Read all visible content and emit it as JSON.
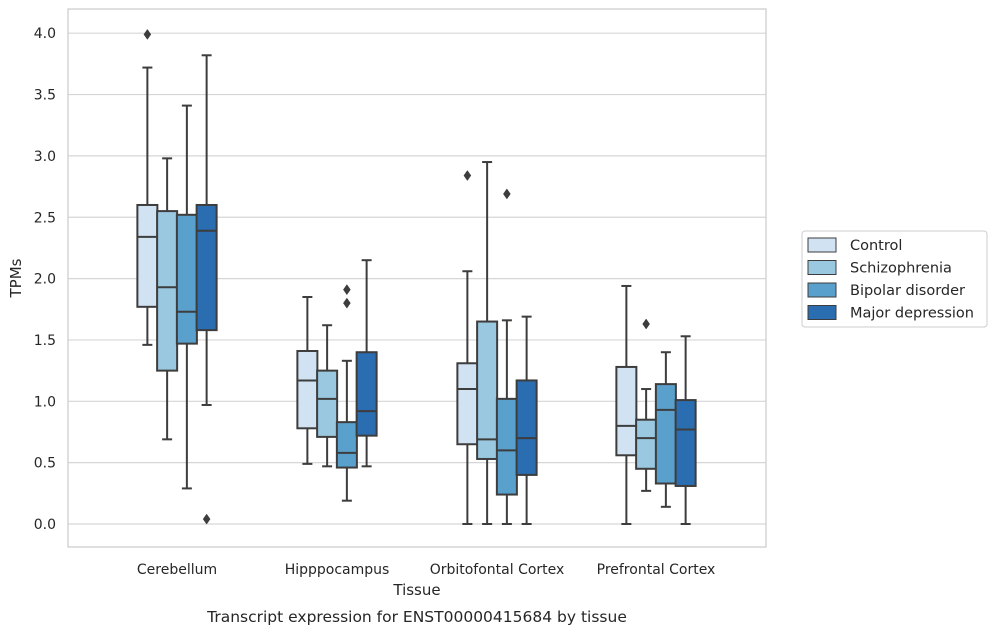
{
  "chart_data": {
    "type": "box",
    "xlabel": "Tissue",
    "ylabel": "TPMs",
    "caption": "Transcript expression for ENST00000415684 by tissue",
    "ylim": [
      -0.19,
      4.19
    ],
    "yticks": [
      "0.0",
      "0.5",
      "1.0",
      "1.5",
      "2.0",
      "2.5",
      "3.0",
      "3.5",
      "4.0"
    ],
    "grid": "horizontal",
    "legend_position": "right",
    "categories": [
      "Cerebellum",
      "Hipppocampus",
      "Orbitofontal Cortex",
      "Prefrontal Cortex"
    ],
    "series": [
      {
        "name": "Control",
        "color": "#d1e2f2",
        "boxes": [
          {
            "whislo": 1.46,
            "q1": 1.77,
            "med": 2.34,
            "q3": 2.6,
            "whishi": 3.72,
            "fliers": [
              3.99
            ]
          },
          {
            "whislo": 0.49,
            "q1": 0.78,
            "med": 1.17,
            "q3": 1.41,
            "whishi": 1.85,
            "fliers": []
          },
          {
            "whislo": 0.0,
            "q1": 0.65,
            "med": 1.1,
            "q3": 1.31,
            "whishi": 2.06,
            "fliers": [
              2.84
            ]
          },
          {
            "whislo": 0.0,
            "q1": 0.56,
            "med": 0.8,
            "q3": 1.28,
            "whishi": 1.94,
            "fliers": []
          }
        ]
      },
      {
        "name": "Schizophrenia",
        "color": "#9ac8e0",
        "boxes": [
          {
            "whislo": 0.69,
            "q1": 1.25,
            "med": 1.93,
            "q3": 2.55,
            "whishi": 2.98,
            "fliers": []
          },
          {
            "whislo": 0.47,
            "q1": 0.71,
            "med": 1.02,
            "q3": 1.25,
            "whishi": 1.62,
            "fliers": []
          },
          {
            "whislo": 0.0,
            "q1": 0.53,
            "med": 0.69,
            "q3": 1.65,
            "whishi": 2.95,
            "fliers": []
          },
          {
            "whislo": 0.27,
            "q1": 0.45,
            "med": 0.7,
            "q3": 0.85,
            "whishi": 1.1,
            "fliers": [
              1.63
            ]
          }
        ]
      },
      {
        "name": "Bipolar disorder",
        "color": "#5aa0cd",
        "boxes": [
          {
            "whislo": 0.29,
            "q1": 1.47,
            "med": 1.73,
            "q3": 2.52,
            "whishi": 3.41,
            "fliers": []
          },
          {
            "whislo": 0.19,
            "q1": 0.46,
            "med": 0.58,
            "q3": 0.83,
            "whishi": 1.33,
            "fliers": [
              1.8,
              1.91
            ]
          },
          {
            "whislo": 0.0,
            "q1": 0.24,
            "med": 0.6,
            "q3": 1.02,
            "whishi": 1.66,
            "fliers": [
              2.69
            ]
          },
          {
            "whislo": 0.14,
            "q1": 0.33,
            "med": 0.93,
            "q3": 1.14,
            "whishi": 1.4,
            "fliers": []
          }
        ]
      },
      {
        "name": "Major depression",
        "color": "#2a6db0",
        "boxes": [
          {
            "whislo": 0.97,
            "q1": 1.58,
            "med": 2.39,
            "q3": 2.6,
            "whishi": 3.82,
            "fliers": [
              0.04
            ]
          },
          {
            "whislo": 0.47,
            "q1": 0.72,
            "med": 0.92,
            "q3": 1.4,
            "whishi": 2.15,
            "fliers": []
          },
          {
            "whislo": 0.0,
            "q1": 0.4,
            "med": 0.7,
            "q3": 1.17,
            "whishi": 1.69,
            "fliers": []
          },
          {
            "whislo": 0.0,
            "q1": 0.31,
            "med": 0.77,
            "q3": 1.01,
            "whishi": 1.53,
            "fliers": []
          }
        ]
      }
    ]
  }
}
